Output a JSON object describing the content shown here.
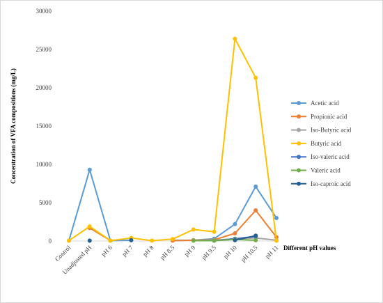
{
  "chart_data": {
    "type": "line",
    "title": "",
    "xlabel": "Different pH values",
    "ylabel": "Concentration of VFA compositions (mg/L)",
    "ylim": [
      0,
      30000
    ],
    "yticks": [
      0,
      5000,
      10000,
      15000,
      20000,
      25000,
      30000
    ],
    "grid": false,
    "legend_position": "right",
    "categories": [
      "Control",
      "Unadjusted pH",
      "pH 6",
      "pH 7",
      "pH 8",
      "pH 8.5",
      "pH 9",
      "pH 9.5",
      "pH 10",
      "pH 10.5",
      "pH 11"
    ],
    "series": [
      {
        "name": "Acetic acid",
        "color": "#5b9bd5",
        "values": [
          50,
          9300,
          50,
          100,
          null,
          100,
          100,
          300,
          2200,
          7100,
          3000
        ]
      },
      {
        "name": "Propionic acid",
        "color": "#ed7d31",
        "values": [
          null,
          1700,
          50,
          null,
          null,
          50,
          100,
          150,
          1000,
          4000,
          500
        ]
      },
      {
        "name": "Iso-Butyric acid",
        "color": "#a5a5a5",
        "values": [
          null,
          null,
          null,
          null,
          null,
          null,
          50,
          100,
          300,
          400,
          100
        ]
      },
      {
        "name": "Butyric acid",
        "color": "#ffc000",
        "values": [
          50,
          1900,
          50,
          400,
          50,
          250,
          1500,
          1200,
          26400,
          21300,
          50
        ]
      },
      {
        "name": "Iso-valeric acid",
        "color": "#4472c4",
        "values": [
          null,
          null,
          null,
          null,
          null,
          null,
          null,
          50,
          300,
          600,
          null
        ]
      },
      {
        "name": "Valeric acid",
        "color": "#70ad47",
        "values": [
          null,
          null,
          null,
          null,
          null,
          null,
          50,
          50,
          200,
          100,
          null
        ]
      },
      {
        "name": "Iso-caproic acid",
        "color": "#255e91",
        "values": [
          null,
          50,
          null,
          100,
          null,
          null,
          null,
          null,
          100,
          700,
          null
        ]
      }
    ]
  }
}
